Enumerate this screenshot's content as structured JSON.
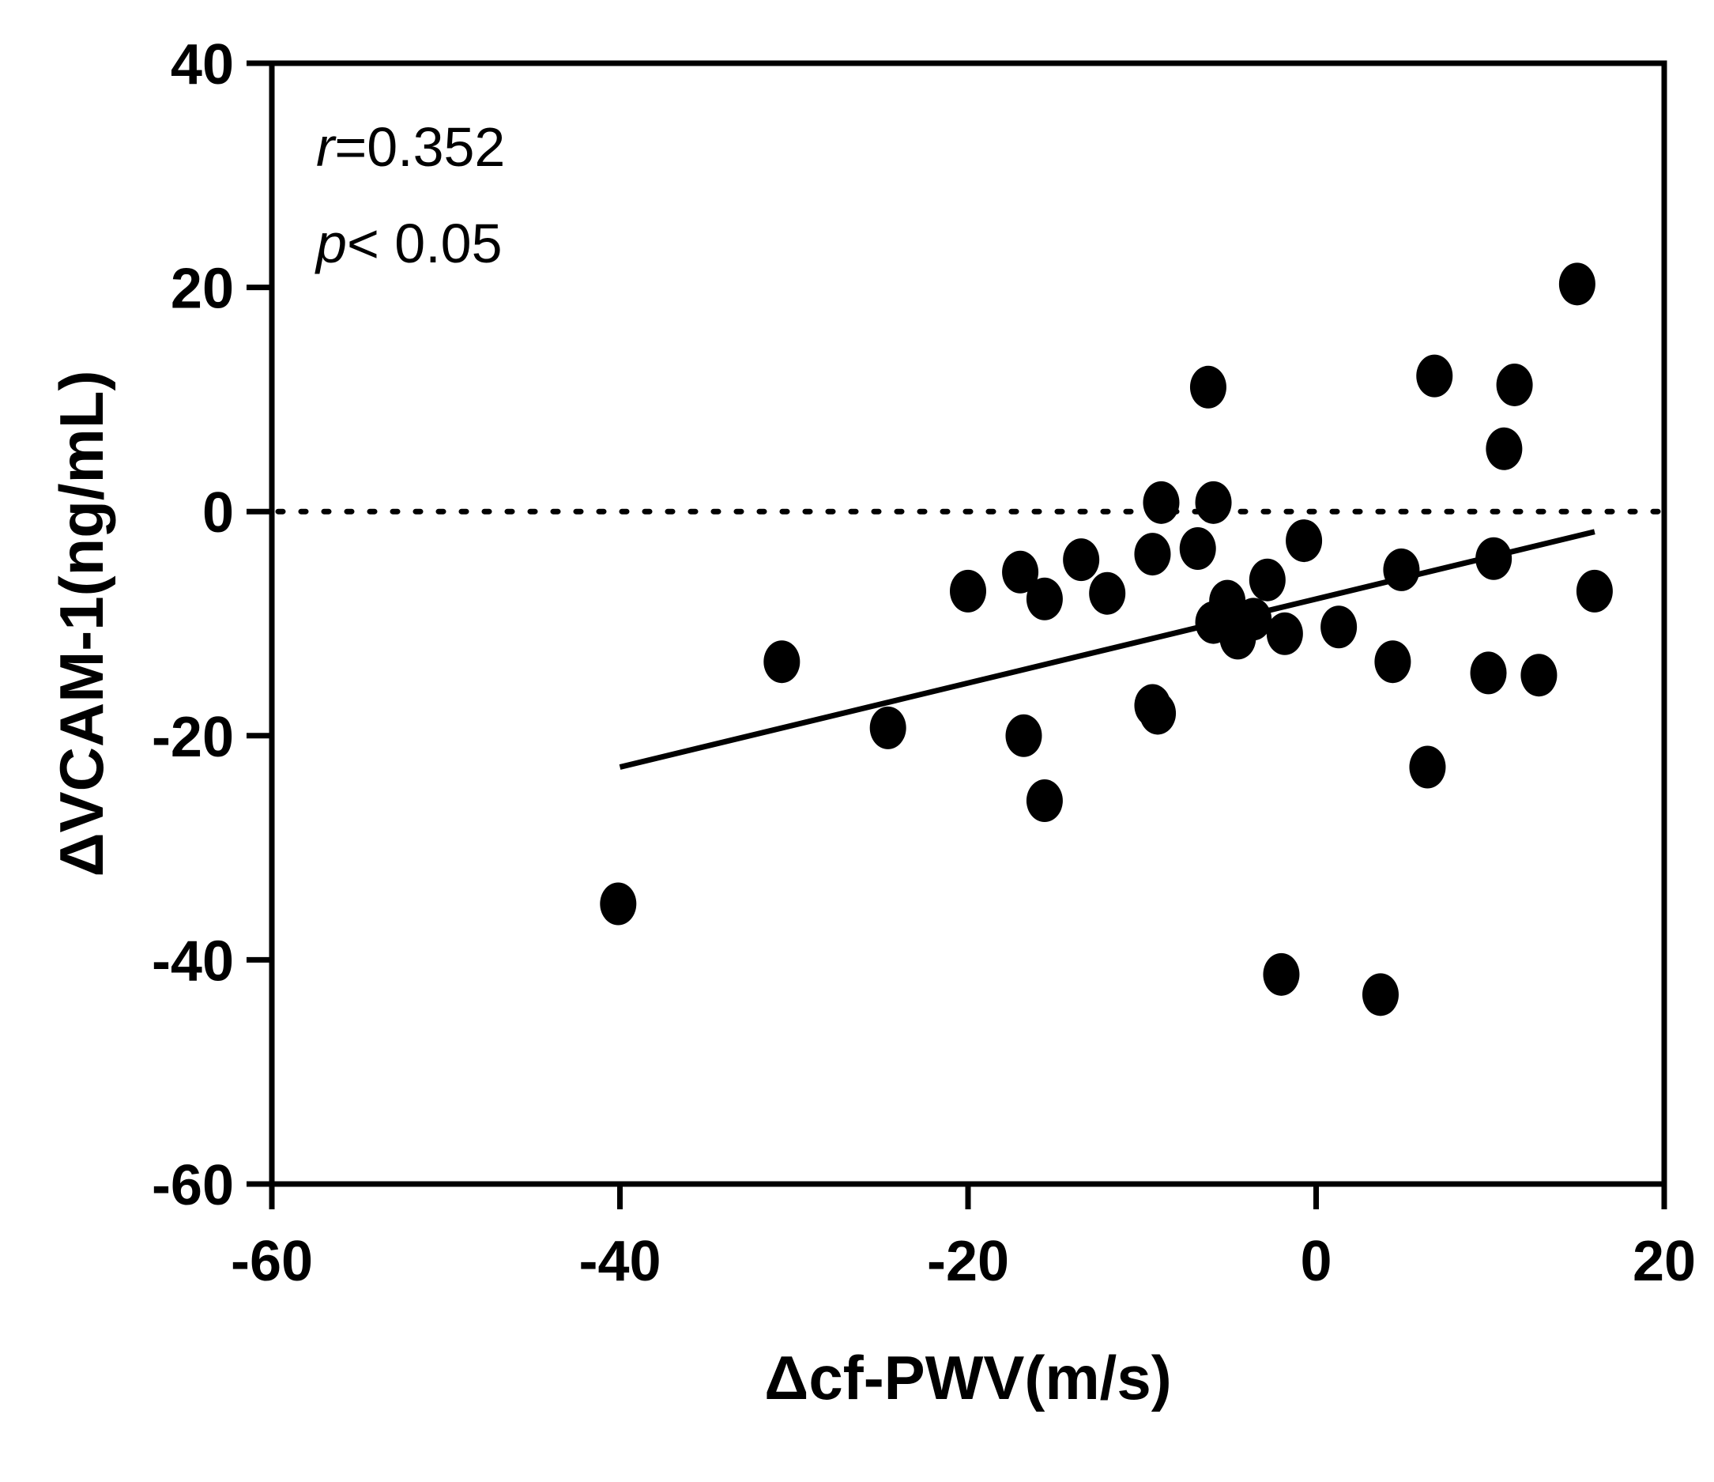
{
  "chart_data": {
    "type": "scatter",
    "xlabel": "Δcf-PWV(m/s)",
    "ylabel": "ΔVCAM-1(ng/mL)",
    "xlim": [
      -60,
      20
    ],
    "ylim": [
      -60,
      40
    ],
    "x_ticks": [
      "-60",
      "-40",
      "-20",
      "0",
      "20"
    ],
    "y_ticks": [
      "-60",
      "-40",
      "-20",
      "0",
      "20",
      "40"
    ],
    "annotations": {
      "r_symbol": "r",
      "r_text": "=0.352",
      "p_symbol": "p",
      "p_text": "< 0.05"
    },
    "reference_line_y": 0,
    "regression": {
      "x": [
        -40,
        16
      ],
      "y": [
        -22.8,
        -1.8
      ]
    },
    "points": [
      {
        "x": -40.1,
        "y": -35.0
      },
      {
        "x": -30.7,
        "y": -13.4
      },
      {
        "x": -24.6,
        "y": -19.3
      },
      {
        "x": -20.0,
        "y": -7.1
      },
      {
        "x": -17.0,
        "y": -5.4
      },
      {
        "x": -16.8,
        "y": -20.0
      },
      {
        "x": -15.6,
        "y": -7.8
      },
      {
        "x": -15.6,
        "y": -25.8
      },
      {
        "x": -13.5,
        "y": -4.3
      },
      {
        "x": -12.0,
        "y": -7.3
      },
      {
        "x": -9.4,
        "y": -3.8
      },
      {
        "x": -9.4,
        "y": -17.3
      },
      {
        "x": -9.1,
        "y": -18.0
      },
      {
        "x": -8.9,
        "y": 0.8
      },
      {
        "x": -6.8,
        "y": -3.3
      },
      {
        "x": -6.2,
        "y": 11.1
      },
      {
        "x": -5.9,
        "y": 0.8
      },
      {
        "x": -5.9,
        "y": -9.9
      },
      {
        "x": -5.1,
        "y": -8.0
      },
      {
        "x": -4.5,
        "y": -11.3
      },
      {
        "x": -3.6,
        "y": -9.6
      },
      {
        "x": -2.8,
        "y": -6.1
      },
      {
        "x": -2.0,
        "y": -41.3
      },
      {
        "x": -1.8,
        "y": -10.9
      },
      {
        "x": -0.7,
        "y": -2.6
      },
      {
        "x": 1.3,
        "y": -10.3
      },
      {
        "x": 3.7,
        "y": -43.1
      },
      {
        "x": 4.4,
        "y": -13.4
      },
      {
        "x": 4.9,
        "y": -5.2
      },
      {
        "x": 6.4,
        "y": -22.8
      },
      {
        "x": 6.8,
        "y": 12.1
      },
      {
        "x": 9.9,
        "y": -14.4
      },
      {
        "x": 10.2,
        "y": -4.2
      },
      {
        "x": 10.8,
        "y": 5.6
      },
      {
        "x": 11.4,
        "y": 11.3
      },
      {
        "x": 12.8,
        "y": -14.6
      },
      {
        "x": 15.0,
        "y": 20.3
      },
      {
        "x": 16.0,
        "y": -7.1
      }
    ]
  }
}
